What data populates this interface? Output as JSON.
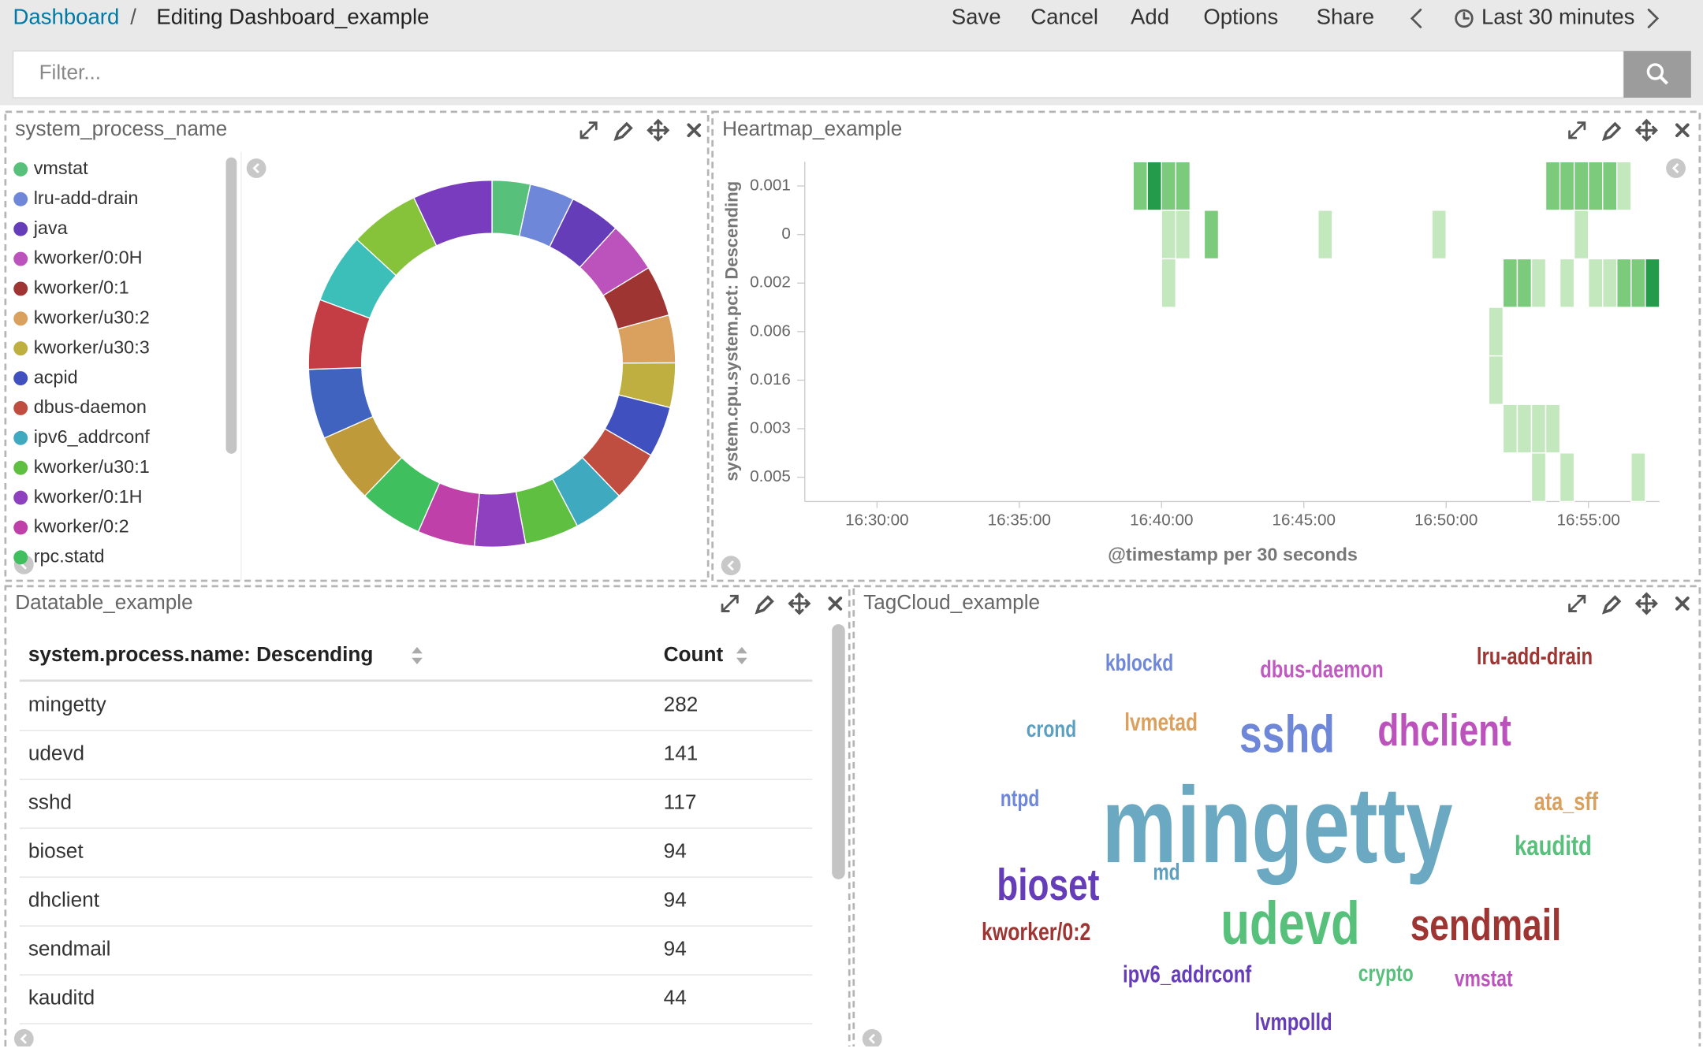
{
  "header": {
    "breadcrumb": "Dashboard",
    "separator": "/",
    "title": "Editing Dashboard_example",
    "menu": [
      "Save",
      "Cancel",
      "Add",
      "Options",
      "Share"
    ],
    "time_range": "Last 30 minutes"
  },
  "filter": {
    "placeholder": "Filter..."
  },
  "chart_data": [
    {
      "type": "pie",
      "donut": true,
      "title": "system_process_name",
      "categories": [
        "vmstat",
        "lru-add-drain",
        "java",
        "kworker/0:0H",
        "kworker/0:1",
        "kworker/u30:2",
        "kworker/u30:3",
        "acpid",
        "dbus-daemon",
        "ipv6_addrconf",
        "kworker/u30:1",
        "kworker/0:1H",
        "kworker/0:2",
        "rpc.statd",
        null,
        null,
        null,
        null,
        null,
        null
      ],
      "values": [
        12,
        14,
        16,
        16,
        16,
        15,
        14,
        16,
        16,
        16,
        17,
        16,
        18,
        20,
        22,
        22,
        22,
        22,
        22,
        25
      ],
      "colors": [
        "#57c17b",
        "#6f87d8",
        "#663db8",
        "#bc52bc",
        "#9e3533",
        "#daa05d",
        "#bfaf40",
        "#4050bf",
        "#bf4d40",
        "#3fa9bf",
        "#5ebf40",
        "#8f40bf",
        "#bf40a8",
        "#40bf5e",
        "#bf9a3a",
        "#3f63bf",
        "#c43c44",
        "#3bbfb8",
        "#86c33a",
        "#7a3cbf"
      ]
    },
    {
      "type": "heatmap",
      "title": "Heartmap_example",
      "x_label": "@timestamp per 30 seconds",
      "y_label": "system.cpu.system.pct: Descending",
      "y_categories": [
        "0.001",
        "0",
        "0.002",
        "0.006",
        "0.016",
        "0.003",
        "0.005"
      ],
      "xlim": [
        "16:27:30",
        "16:57:30"
      ],
      "xticks": [
        "16:30:00",
        "16:35:00",
        "16:40:00",
        "16:45:00",
        "16:50:00",
        "16:55:00"
      ],
      "color_scale": [
        "#c4e8bd",
        "#7ccb7c",
        "#239b4b"
      ],
      "cells": [
        {
          "x": "16:39:00",
          "y": "0.001",
          "value": 2
        },
        {
          "x": "16:39:30",
          "y": "0.001",
          "value": 3
        },
        {
          "x": "16:40:00",
          "y": "0.001",
          "value": 2
        },
        {
          "x": "16:40:30",
          "y": "0.001",
          "value": 2
        },
        {
          "x": "16:53:30",
          "y": "0.001",
          "value": 2
        },
        {
          "x": "16:54:00",
          "y": "0.001",
          "value": 2
        },
        {
          "x": "16:54:30",
          "y": "0.001",
          "value": 2
        },
        {
          "x": "16:55:00",
          "y": "0.001",
          "value": 2
        },
        {
          "x": "16:55:30",
          "y": "0.001",
          "value": 2
        },
        {
          "x": "16:56:00",
          "y": "0.001",
          "value": 1
        },
        {
          "x": "16:40:00",
          "y": "0",
          "value": 1
        },
        {
          "x": "16:40:30",
          "y": "0",
          "value": 1
        },
        {
          "x": "16:41:30",
          "y": "0",
          "value": 2
        },
        {
          "x": "16:45:30",
          "y": "0",
          "value": 1
        },
        {
          "x": "16:49:30",
          "y": "0",
          "value": 1
        },
        {
          "x": "16:54:30",
          "y": "0",
          "value": 1
        },
        {
          "x": "16:40:00",
          "y": "0.002",
          "value": 1
        },
        {
          "x": "16:52:00",
          "y": "0.002",
          "value": 2
        },
        {
          "x": "16:52:30",
          "y": "0.002",
          "value": 2
        },
        {
          "x": "16:53:00",
          "y": "0.002",
          "value": 1
        },
        {
          "x": "16:54:00",
          "y": "0.002",
          "value": 1
        },
        {
          "x": "16:55:00",
          "y": "0.002",
          "value": 1
        },
        {
          "x": "16:55:30",
          "y": "0.002",
          "value": 1
        },
        {
          "x": "16:56:00",
          "y": "0.002",
          "value": 2
        },
        {
          "x": "16:56:30",
          "y": "0.002",
          "value": 2
        },
        {
          "x": "16:57:00",
          "y": "0.002",
          "value": 3
        },
        {
          "x": "16:51:30",
          "y": "0.006",
          "value": 1
        },
        {
          "x": "16:51:30",
          "y": "0.016",
          "value": 1
        },
        {
          "x": "16:52:00",
          "y": "0.003",
          "value": 1
        },
        {
          "x": "16:52:30",
          "y": "0.003",
          "value": 1
        },
        {
          "x": "16:53:00",
          "y": "0.003",
          "value": 1
        },
        {
          "x": "16:53:30",
          "y": "0.003",
          "value": 1
        },
        {
          "x": "16:53:00",
          "y": "0.005",
          "value": 1
        },
        {
          "x": "16:54:00",
          "y": "0.005",
          "value": 1
        },
        {
          "x": "16:56:30",
          "y": "0.005",
          "value": 1
        }
      ]
    }
  ],
  "table": {
    "title": "Datatable_example",
    "columns": [
      "system.process.name: Descending",
      "Count"
    ],
    "rows": [
      [
        "mingetty",
        282
      ],
      [
        "udevd",
        141
      ],
      [
        "sshd",
        117
      ],
      [
        "bioset",
        94
      ],
      [
        "dhclient",
        94
      ],
      [
        "sendmail",
        94
      ],
      [
        "kauditd",
        44
      ]
    ]
  },
  "tag_cloud": {
    "title": "TagCloud_example",
    "words": [
      "kblockd",
      "dbus-daemon",
      "lru-add-drain",
      "crond",
      "lvmetad",
      "sshd",
      "dhclient",
      "ntpd",
      "mingetty",
      "ata_sff",
      "kauditd",
      "bioset",
      "md",
      "udevd",
      "sendmail",
      "kworker/0:2",
      "ipv6_addrconf",
      "crypto",
      "vmstat",
      "lvmpolld"
    ],
    "values": [
      30,
      33,
      33,
      30,
      35,
      117,
      94,
      30,
      282,
      37,
      44,
      94,
      30,
      141,
      94,
      36,
      33,
      30,
      30,
      33
    ],
    "colors": [
      "#6f87d8",
      "#c05bc0",
      "#9e3533",
      "#5c9fc0",
      "#daa05d",
      "#6f87d8",
      "#bc52bc",
      "#6f87d8",
      "#6ba8c2",
      "#daa05d",
      "#57c17b",
      "#663db8",
      "#5c9fc0",
      "#57c17b",
      "#9e3533",
      "#9e3533",
      "#663db8",
      "#57c17b",
      "#bc52bc",
      "#663db8"
    ]
  }
}
